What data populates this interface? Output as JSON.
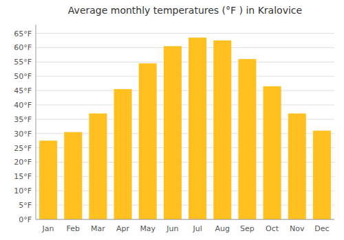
{
  "chart_data": {
    "type": "bar",
    "title": "Average monthly temperatures (°F ) in Kralovice",
    "categories": [
      "Jan",
      "Feb",
      "Mar",
      "Apr",
      "May",
      "Jun",
      "Jul",
      "Aug",
      "Sep",
      "Oct",
      "Nov",
      "Dec"
    ],
    "values": [
      27.5,
      30.5,
      37.0,
      45.5,
      54.5,
      60.5,
      63.5,
      62.5,
      56.0,
      46.5,
      37.0,
      31.0
    ],
    "color": "#FFC020",
    "ylim": [
      0,
      68
    ],
    "yticks": [
      {
        "value": 0,
        "label": "0°F"
      },
      {
        "value": 5,
        "label": "5°F"
      },
      {
        "value": 10,
        "label": "10°F"
      },
      {
        "value": 15,
        "label": "15°F"
      },
      {
        "value": 20,
        "label": "20°F"
      },
      {
        "value": 25,
        "label": "25°F"
      },
      {
        "value": 30,
        "label": "30°F"
      },
      {
        "value": 35,
        "label": "35°F"
      },
      {
        "value": 40,
        "label": "40°F"
      },
      {
        "value": 45,
        "label": "45°F"
      },
      {
        "value": 50,
        "label": "50°F"
      },
      {
        "value": 55,
        "label": "55°F"
      },
      {
        "value": 60,
        "label": "60°F"
      },
      {
        "value": 65,
        "label": "65°F"
      }
    ],
    "grid": true
  }
}
